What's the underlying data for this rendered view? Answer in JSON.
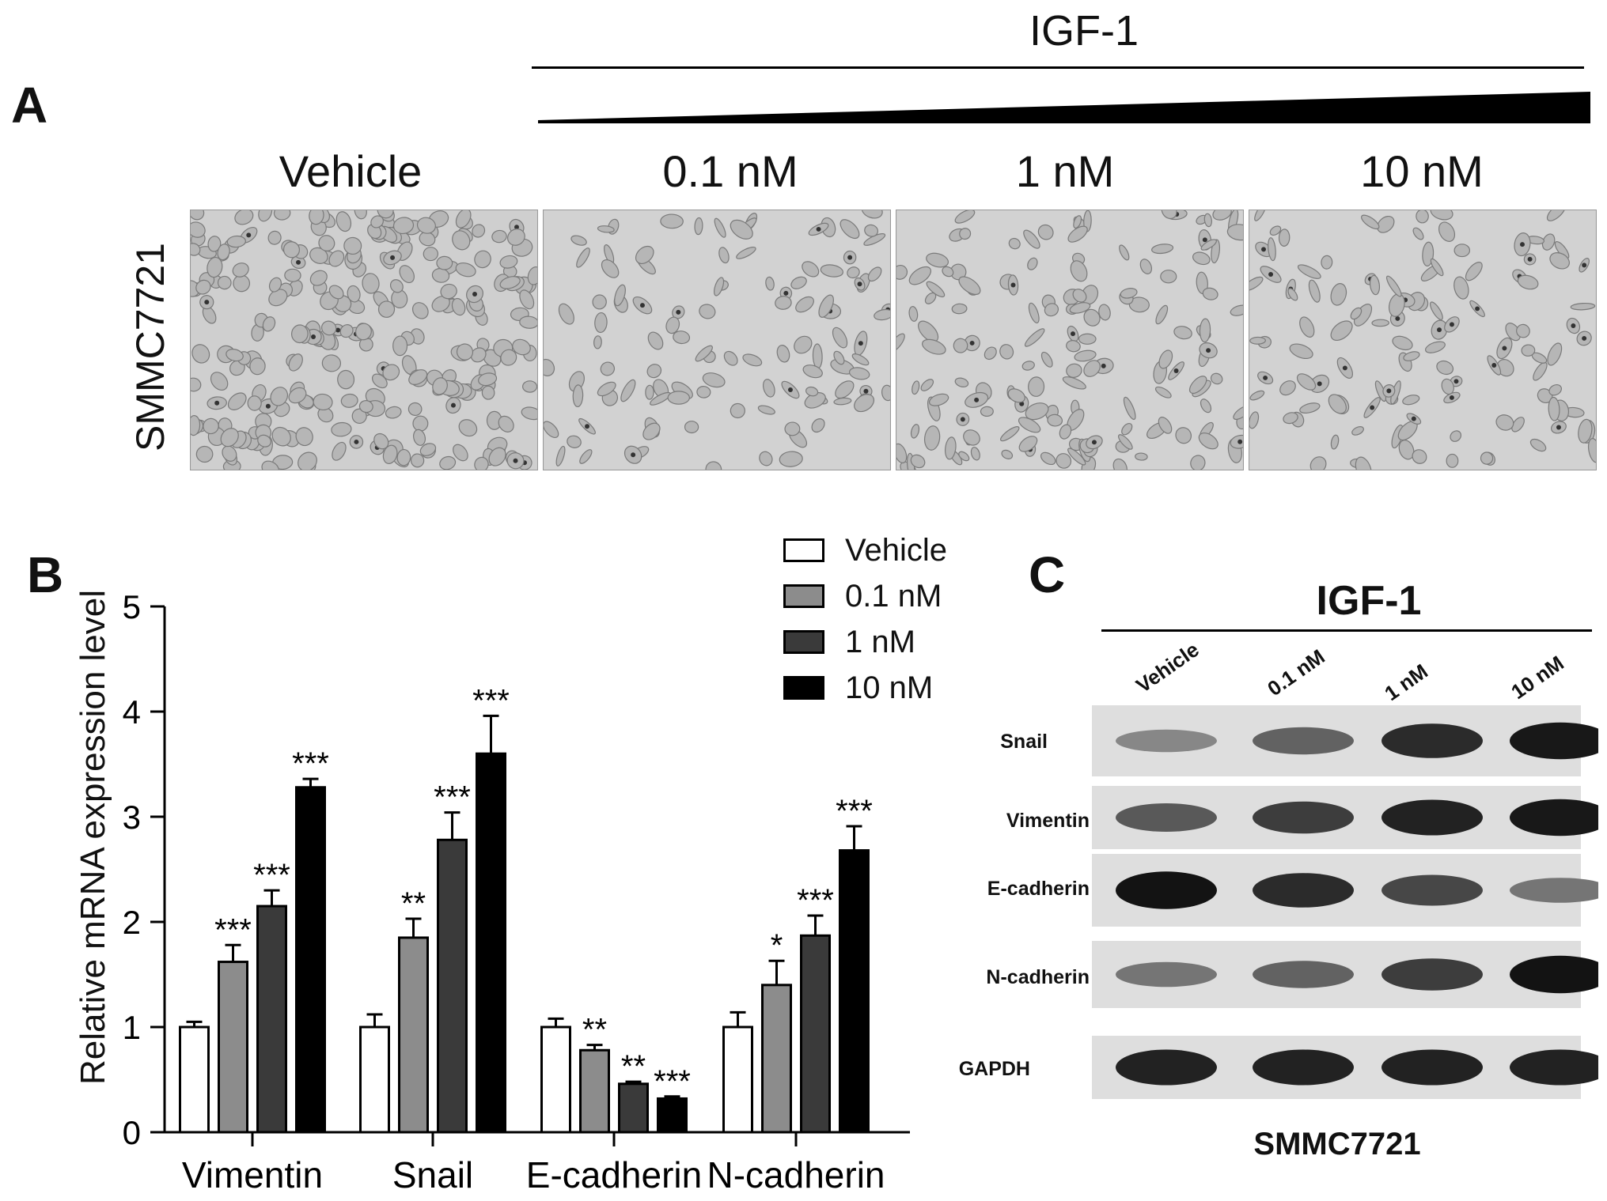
{
  "panel_a": {
    "letter": "A",
    "treatment": "IGF-1",
    "column_labels": [
      "Vehicle",
      "0.1 nM",
      "1 nM",
      "10 nM"
    ],
    "row_label": "SMMC7721"
  },
  "panel_b": {
    "letter": "B",
    "legend": [
      {
        "label": "Vehicle",
        "color": "#ffffff"
      },
      {
        "label": "0.1 nM",
        "color": "#8c8c8c"
      },
      {
        "label": "1 nM",
        "color": "#3a3a3a"
      },
      {
        "label": "10 nM",
        "color": "#000000"
      }
    ]
  },
  "chart_data": {
    "type": "bar",
    "ylabel": "Relative mRNA expression level",
    "ylim": [
      0,
      5
    ],
    "yticks": [
      "0",
      "1",
      "2",
      "3",
      "4",
      "5"
    ],
    "categories": [
      "Vimentin",
      "Snail",
      "E-cadherin",
      "N-cadherin"
    ],
    "series": [
      {
        "name": "Vehicle",
        "values": [
          1.0,
          1.0,
          1.0,
          1.0
        ],
        "errors": [
          0.05,
          0.12,
          0.08,
          0.14
        ],
        "sig": [
          "",
          "",
          "",
          ""
        ]
      },
      {
        "name": "0.1 nM",
        "values": [
          1.62,
          1.85,
          0.78,
          1.4
        ],
        "errors": [
          0.16,
          0.18,
          0.05,
          0.23
        ],
        "sig": [
          "***",
          "**",
          "**",
          "*"
        ]
      },
      {
        "name": "1 nM",
        "values": [
          2.15,
          2.78,
          0.46,
          1.87
        ],
        "errors": [
          0.15,
          0.26,
          0.02,
          0.19
        ],
        "sig": [
          "***",
          "***",
          "**",
          "***"
        ]
      },
      {
        "name": "10 nM",
        "values": [
          3.28,
          3.6,
          0.32,
          2.68
        ],
        "errors": [
          0.08,
          0.36,
          0.02,
          0.23
        ],
        "sig": [
          "***",
          "***",
          "***",
          "***"
        ]
      }
    ]
  },
  "panel_c": {
    "letter": "C",
    "treatment": "IGF-1",
    "lane_labels": [
      "Vehicle",
      "0.1 nM",
      "1 nM",
      "10 nM"
    ],
    "blots": [
      {
        "label": "Snail",
        "intensity": [
          0.35,
          0.55,
          0.85,
          0.95
        ]
      },
      {
        "label": "Vimentin",
        "intensity": [
          0.6,
          0.75,
          0.9,
          0.95
        ]
      },
      {
        "label": "E-cadherin",
        "intensity": [
          0.98,
          0.85,
          0.7,
          0.45
        ]
      },
      {
        "label": "N-cadherin",
        "intensity": [
          0.45,
          0.55,
          0.75,
          0.98
        ]
      },
      {
        "label": "GAPDH",
        "intensity": [
          0.9,
          0.9,
          0.9,
          0.9
        ]
      }
    ],
    "cell_line": "SMMC7721"
  }
}
